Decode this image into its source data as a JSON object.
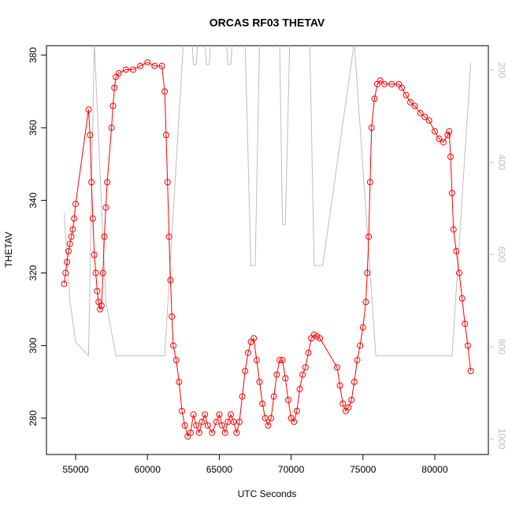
{
  "chart_data": {
    "type": "scatter",
    "title": "ORCAS RF03 THETAV",
    "x_label": "UTC Seconds",
    "y_label": "THETAV",
    "xlim": [
      52970,
      83730
    ],
    "xticks": [
      55000,
      60000,
      65000,
      70000,
      75000,
      80000
    ],
    "ylim": [
      270,
      382.6
    ],
    "yticks": [
      280,
      300,
      320,
      340,
      360,
      380
    ],
    "y2lim": [
      1034,
      147
    ],
    "y2ticks": [
      200,
      400,
      600,
      800,
      1000
    ],
    "series": [
      {
        "color": "red",
        "x": [
          54200,
          54300,
          54400,
          54500,
          54600,
          54700,
          54800,
          54900,
          55000,
          55900,
          56000,
          56100,
          56200,
          56300,
          56400,
          56500,
          56600,
          56700,
          56800,
          56900,
          57000,
          57100,
          57200,
          57500,
          57600,
          57700,
          57800,
          58000,
          58500,
          59000,
          59500,
          60000,
          60500,
          61000,
          61200,
          61300,
          61400,
          61500,
          61600,
          61700,
          61800,
          62000,
          62200,
          62400,
          62600,
          62800,
          63000,
          63200,
          63400,
          63600,
          63800,
          64000,
          64200,
          64500,
          64800,
          65000,
          65200,
          65400,
          65600,
          65800,
          66000,
          66200,
          66400,
          66600,
          66800,
          67000,
          67200,
          67400,
          67600,
          67800,
          68000,
          68200,
          68400,
          68600,
          68800,
          69000,
          69200,
          69400,
          69600,
          69800,
          70000,
          70200,
          70400,
          70600,
          70800,
          71000,
          71200,
          71400,
          71600,
          71800,
          72000,
          73200,
          73400,
          73600,
          73800,
          74000,
          74200,
          74400,
          74600,
          74800,
          75000,
          75200,
          75300,
          75400,
          75500,
          75600,
          75800,
          76000,
          76200,
          76500,
          77000,
          77500,
          77700,
          78000,
          78300,
          78600,
          79000,
          79300,
          79600,
          80000,
          80300,
          80600,
          80900,
          81000,
          81100,
          81200,
          81300,
          81500,
          81700,
          81900,
          82100,
          82300,
          82500
        ],
        "values": [
          317,
          320,
          323,
          326,
          328,
          330,
          332,
          335,
          339,
          365,
          358,
          345,
          335,
          325,
          320,
          315,
          312,
          310,
          311,
          320,
          330,
          338,
          345,
          360,
          366,
          371,
          374,
          375,
          376,
          376,
          377,
          378,
          377,
          377,
          370,
          358,
          345,
          330,
          318,
          308,
          300,
          296,
          290,
          282,
          278,
          275,
          276,
          281,
          278,
          276,
          279,
          281,
          278,
          276,
          279,
          281,
          278,
          276,
          279,
          281,
          279,
          276,
          279,
          286,
          293,
          298,
          301,
          302,
          296,
          290,
          284,
          280,
          278,
          280,
          286,
          292,
          296,
          296,
          291,
          285,
          280,
          279,
          282,
          288,
          292,
          294,
          298,
          302,
          303,
          302.5,
          302,
          294,
          289,
          284,
          282,
          283,
          285,
          290,
          296,
          300,
          305,
          312,
          320,
          330,
          345,
          360,
          368,
          372,
          373,
          372,
          372,
          372,
          371,
          369,
          367,
          366,
          364,
          363,
          362,
          359,
          357,
          356,
          358,
          359,
          352,
          342,
          332,
          326,
          320,
          313,
          306,
          300,
          293
        ]
      },
      {
        "color": "#bebebe",
        "axis": "y2",
        "x": [
          54200,
          54600,
          55000,
          55900,
          56300,
          57100,
          57800,
          61200,
          62500,
          63100,
          63200,
          63400,
          63500,
          64000,
          64100,
          64300,
          64400,
          65500,
          65600,
          65800,
          65900,
          66800,
          67200,
          67500,
          67800,
          69200,
          69400,
          69600,
          69900,
          71300,
          71600,
          72200,
          74400,
          75900,
          81200,
          82500
        ],
        "values": [
          510,
          700,
          790,
          820,
          140,
          700,
          820,
          820,
          140,
          140,
          188,
          188,
          140,
          140,
          188,
          188,
          140,
          140,
          188,
          188,
          140,
          140,
          624,
          624,
          140,
          140,
          535,
          535,
          140,
          140,
          624,
          624,
          140,
          820,
          820,
          185
        ]
      }
    ]
  }
}
